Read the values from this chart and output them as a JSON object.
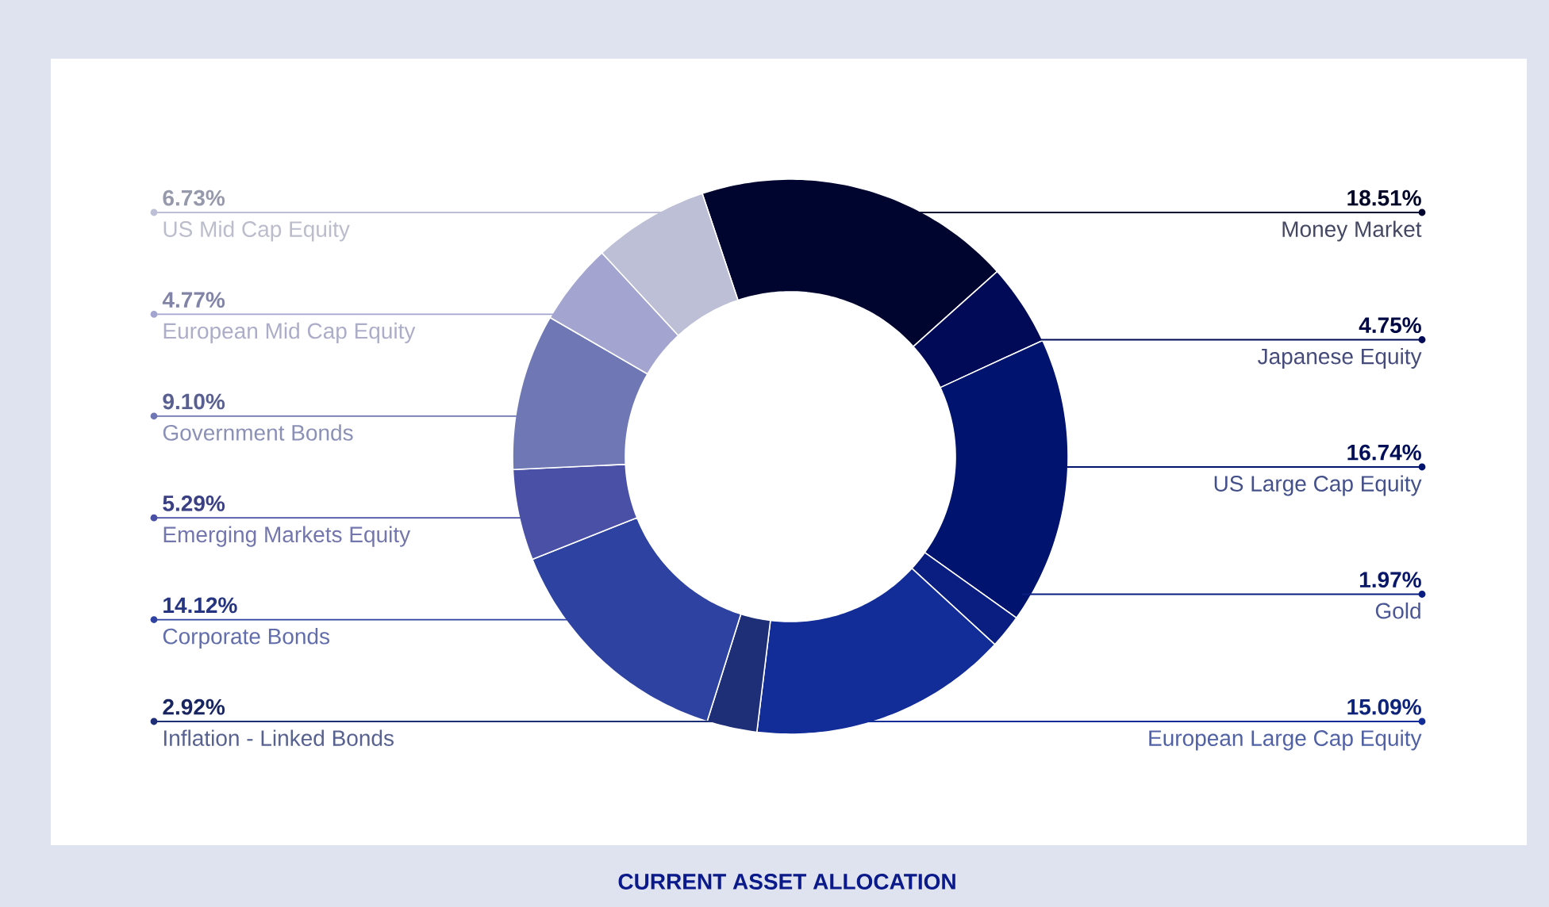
{
  "chart_data": {
    "type": "donut",
    "title": "CURRENT ASSET ALLOCATION",
    "legend": "left",
    "categories": [
      "Money Market",
      "Japanese Equity",
      "US Large Cap Equity",
      "Gold",
      "European Large Cap Equity",
      "Inflation - Linked Bonds",
      "Corporate Bonds",
      "Emerging Markets Equity",
      "Government Bonds",
      "European Mid Cap Equity",
      "US Mid Cap Equity"
    ],
    "values": [
      18.51,
      4.75,
      16.74,
      1.97,
      15.09,
      2.92,
      14.12,
      5.29,
      9.1,
      4.77,
      6.73
    ],
    "value_labels": [
      "18.51%",
      "4.75%",
      "16.74%",
      "1.97%",
      "15.09%",
      "2.92%",
      "14.12%",
      "5.29%",
      "9.10%",
      "4.77%",
      "6.73%"
    ],
    "colors": [
      "#000530",
      "#000a56",
      "#00136e",
      "#0a1d80",
      "#122c98",
      "#1e2f78",
      "#2e42a2",
      "#4a50a6",
      "#6f78b5",
      "#a3a5d0",
      "#bcbfd6"
    ]
  }
}
